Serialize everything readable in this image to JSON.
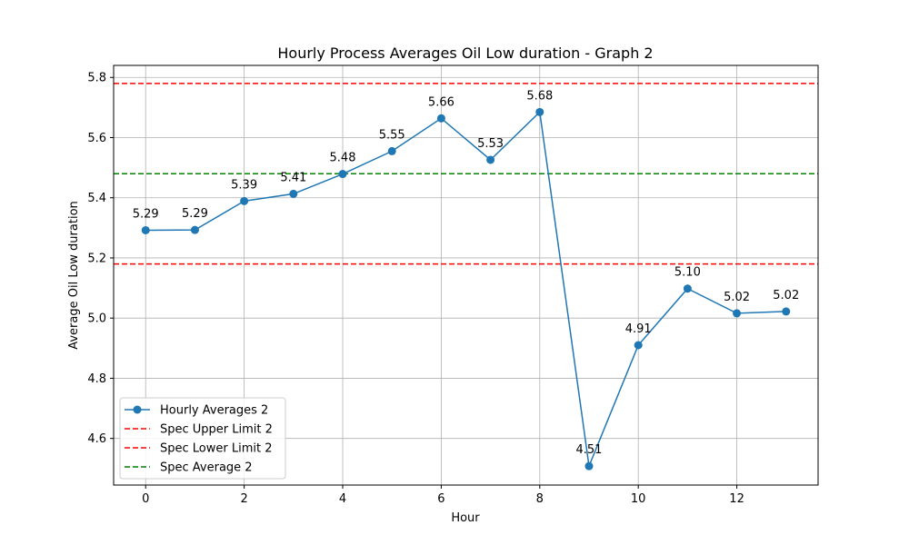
{
  "chart_data": {
    "type": "line",
    "title": "Hourly Process Averages Oil Low duration - Graph 2",
    "xlabel": "Hour",
    "ylabel": "Average Oil Low duration",
    "xlim": [
      -0.65,
      13.65
    ],
    "ylim": [
      4.445,
      5.84
    ],
    "xticks": [
      0,
      2,
      4,
      6,
      8,
      10,
      12
    ],
    "yticks": [
      4.6,
      4.8,
      5.0,
      5.2,
      5.4,
      5.6,
      5.8
    ],
    "grid": true,
    "legend_position": "lower-left",
    "series": [
      {
        "name": "Hourly Averages 2",
        "color": "#1f77b4",
        "x": [
          0,
          1,
          2,
          3,
          4,
          5,
          6,
          7,
          8,
          9,
          10,
          11,
          12,
          13
        ],
        "values": [
          5.292,
          5.293,
          5.389,
          5.413,
          5.479,
          5.555,
          5.664,
          5.526,
          5.685,
          4.508,
          4.91,
          5.098,
          5.016,
          5.022
        ],
        "labels": [
          "5.29",
          "5.29",
          "5.39",
          "5.41",
          "5.48",
          "5.55",
          "5.66",
          "5.53",
          "5.68",
          "4.51",
          "4.91",
          "5.10",
          "5.02",
          "5.02"
        ]
      }
    ],
    "reference_lines": [
      {
        "name": "Spec Upper Limit 2",
        "value": 5.78,
        "color": "#ff0000",
        "style": "dashed"
      },
      {
        "name": "Spec Lower Limit 2",
        "value": 5.18,
        "color": "#ff0000",
        "style": "dashed"
      },
      {
        "name": "Spec Average 2",
        "value": 5.48,
        "color": "#008000",
        "style": "dashed"
      }
    ]
  }
}
